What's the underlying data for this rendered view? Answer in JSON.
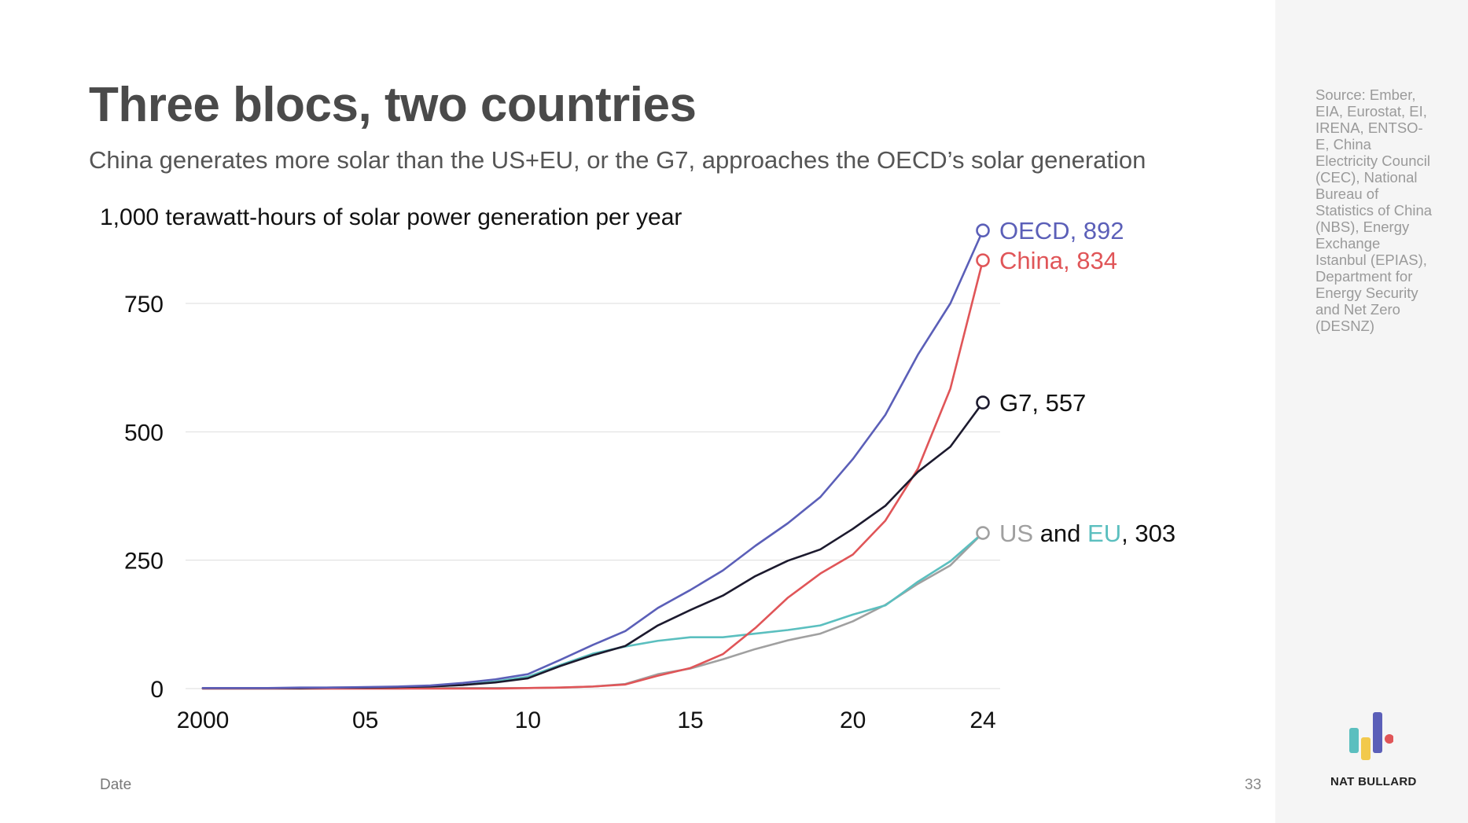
{
  "title": "Three blocs, two countries",
  "subtitle": "China generates more solar than the US+EU, or the G7, approaches the OECD’s solar generation",
  "footer": {
    "axis_caption": "Date",
    "page_number": "33"
  },
  "sidebar": {
    "source_text": "Source: Ember, EIA, Eurostat, EI, IRENA, ENTSO-E, China Electricity Council (CEC), National Bureau of Statistics of China (NBS), Energy Exchange Istanbul (EPIAS), Department for Energy Security and Net Zero (DESNZ)",
    "brand": "NAT BULLARD"
  },
  "colors": {
    "oecd": "#5b5fb8",
    "china": "#e05558",
    "g7": "#1c1a2e",
    "us": "#a0a0a0",
    "eu": "#5bbfbf",
    "grid": "#dddddd"
  },
  "chart_data": {
    "type": "line",
    "title": "1,000 terawatt-hours of solar power generation per year",
    "xlabel": "Date",
    "ylabel": "",
    "xlim": [
      2000,
      2024
    ],
    "ylim": [
      0,
      900
    ],
    "yticks": [
      0,
      250,
      500,
      750
    ],
    "ytick_labels": [
      "0",
      "250",
      "500",
      "750"
    ],
    "xticks": [
      2000,
      2005,
      2010,
      2015,
      2020,
      2024
    ],
    "xtick_labels": [
      "2000",
      "05",
      "10",
      "15",
      "20",
      "24"
    ],
    "grid": true,
    "x": [
      2000,
      2001,
      2002,
      2003,
      2004,
      2005,
      2006,
      2007,
      2008,
      2009,
      2010,
      2011,
      2012,
      2013,
      2014,
      2015,
      2016,
      2017,
      2018,
      2019,
      2020,
      2021,
      2022,
      2023,
      2024
    ],
    "series": [
      {
        "name": "OECD",
        "color_key": "oecd",
        "end_value": "892",
        "end_label": "OECD, 892",
        "values": [
          1,
          1,
          1,
          2,
          2,
          3,
          4,
          6,
          11,
          18,
          28,
          56,
          85,
          112,
          157,
          192,
          230,
          278,
          322,
          373,
          447,
          533,
          650,
          750,
          892
        ]
      },
      {
        "name": "China",
        "color_key": "china",
        "end_value": "834",
        "end_label": "China, 834",
        "values": [
          0,
          0,
          0,
          0,
          0,
          0,
          0,
          0,
          0,
          0,
          1,
          2,
          4,
          8,
          25,
          40,
          67,
          118,
          177,
          224,
          261,
          327,
          428,
          584,
          834
        ]
      },
      {
        "name": "G7",
        "color_key": "g7",
        "end_value": "557",
        "end_label": "G7, 557",
        "values": [
          1,
          1,
          1,
          1,
          2,
          2,
          3,
          4,
          7,
          12,
          20,
          44,
          65,
          83,
          123,
          153,
          181,
          219,
          249,
          271,
          311,
          356,
          422,
          471,
          557
        ]
      },
      {
        "name": "EU",
        "color_key": "eu",
        "end_value": "303",
        "values": [
          0,
          0,
          0,
          0,
          1,
          1,
          2,
          4,
          7,
          14,
          23,
          46,
          68,
          82,
          93,
          100,
          100,
          107,
          114,
          123,
          144,
          162,
          208,
          248,
          303
        ]
      },
      {
        "name": "US",
        "color_key": "us",
        "end_value": "303",
        "values": [
          0,
          0,
          0,
          0,
          0,
          0,
          0,
          1,
          1,
          1,
          1,
          2,
          4,
          9,
          28,
          39,
          57,
          77,
          94,
          107,
          131,
          163,
          204,
          240,
          303
        ]
      }
    ],
    "combined_end_label": {
      "first": "US",
      "joiner": " and ",
      "second": "EU",
      "suffix": ", 303"
    }
  }
}
